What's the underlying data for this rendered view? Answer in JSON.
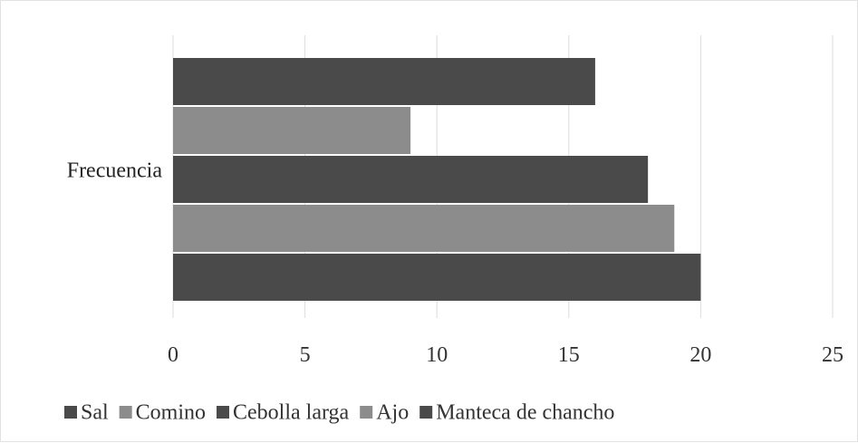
{
  "chart_data": {
    "type": "bar",
    "orientation": "horizontal",
    "categories": [
      "Frecuencia"
    ],
    "series": [
      {
        "name": "Sal",
        "values": [
          16
        ],
        "color": "#4a4a4a"
      },
      {
        "name": "Comino",
        "values": [
          9
        ],
        "color": "#8c8c8c"
      },
      {
        "name": "Cebolla larga",
        "values": [
          18
        ],
        "color": "#4a4a4a"
      },
      {
        "name": "Ajo",
        "values": [
          19
        ],
        "color": "#8c8c8c"
      },
      {
        "name": "Manteca de chancho",
        "values": [
          20
        ],
        "color": "#4a4a4a"
      }
    ],
    "xlim": [
      0,
      25
    ],
    "xticks": [
      0,
      5,
      10,
      15,
      20,
      25
    ],
    "grid": "vertical",
    "legend_position": "bottom",
    "grid_color": "#dcdcdc"
  }
}
